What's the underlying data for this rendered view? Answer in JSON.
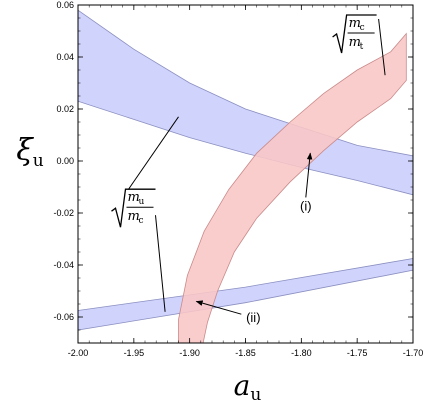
{
  "chart_data": {
    "type": "area",
    "xlabel_main": "a",
    "xlabel_sub": "u",
    "ylabel_main": "ξ",
    "ylabel_sub": "u",
    "xlim": [
      -2.0,
      -1.7
    ],
    "ylim": [
      -0.07,
      0.06
    ],
    "grid": false,
    "x_ticks": [
      "-2.00",
      "-1.95",
      "-1.90",
      "-1.85",
      "-1.80",
      "-1.75",
      "-1.70"
    ],
    "y_ticks": [
      "0.06",
      "0.04",
      "0.02",
      "0.00",
      "-0.02",
      "-0.04",
      "-0.06"
    ],
    "x_tick_values": [
      -2.0,
      -1.95,
      -1.9,
      -1.85,
      -1.8,
      -1.75,
      -1.7
    ],
    "y_tick_values": [
      0.06,
      0.04,
      0.02,
      0.0,
      -0.02,
      -0.04,
      -0.06
    ],
    "colors": {
      "blue_fill": "#c9cdfa",
      "blue_edge": "#8a8fc0",
      "red_fill": "#f9c6c6",
      "red_edge": "#c98a8a"
    },
    "series": [
      {
        "color": "blue",
        "polygon": [
          [
            -2.0,
            0.058
          ],
          [
            -1.95,
            0.043
          ],
          [
            -1.9,
            0.03
          ],
          [
            -1.85,
            0.02
          ],
          [
            -1.8,
            0.013
          ],
          [
            -1.75,
            0.006
          ],
          [
            -1.7,
            0.002
          ],
          [
            -1.7,
            -0.013
          ],
          [
            -1.75,
            -0.0075
          ],
          [
            -1.8,
            -0.0025
          ],
          [
            -1.85,
            0.003
          ],
          [
            -1.9,
            0.009
          ],
          [
            -1.95,
            0.016
          ],
          [
            -2.0,
            0.023
          ]
        ]
      },
      {
        "color": "blue",
        "polygon": [
          [
            -2.0,
            -0.0575
          ],
          [
            -1.85,
            -0.0485
          ],
          [
            -1.7,
            -0.0375
          ],
          [
            -1.7,
            -0.042
          ],
          [
            -1.85,
            -0.0545
          ],
          [
            -2.0,
            -0.065
          ]
        ]
      },
      {
        "color": "red",
        "polygon": [
          [
            -1.91,
            -0.07
          ],
          [
            -1.91,
            -0.061
          ],
          [
            -1.902,
            -0.044
          ],
          [
            -1.887,
            -0.027
          ],
          [
            -1.865,
            -0.011
          ],
          [
            -1.84,
            0.003
          ],
          [
            -1.81,
            0.015
          ],
          [
            -1.78,
            0.026
          ],
          [
            -1.75,
            0.035
          ],
          [
            -1.72,
            0.042
          ],
          [
            -1.706,
            0.049
          ],
          [
            -1.706,
            0.031
          ],
          [
            -1.72,
            0.024
          ],
          [
            -1.75,
            0.015
          ],
          [
            -1.78,
            0.004
          ],
          [
            -1.81,
            -0.008
          ],
          [
            -1.84,
            -0.022
          ],
          [
            -1.86,
            -0.035
          ],
          [
            -1.875,
            -0.05
          ],
          [
            -1.884,
            -0.062
          ],
          [
            -1.888,
            -0.07
          ]
        ]
      }
    ],
    "annotations": [
      {
        "id": "sqrt-mc-mt",
        "num": "m",
        "num_sub": "c",
        "den": "m",
        "den_sub": "t",
        "text_xy": [
          -1.772,
          0.05
        ],
        "arrow_to": [
          -1.725,
          0.033
        ]
      },
      {
        "id": "sqrt-mu-mc",
        "num": "m",
        "num_sub": "u",
        "den": "m",
        "den_sub": "c",
        "text_xy": [
          -1.97,
          -0.017
        ],
        "arrow_to": [
          -1.922,
          -0.058
        ]
      },
      {
        "id": "point-i",
        "label": "(i)",
        "text_xy": [
          -1.796,
          -0.019
        ],
        "arrow_to": [
          -1.792,
          0.003
        ]
      },
      {
        "id": "point-ii",
        "label": "(ii)",
        "text_xy": [
          -1.843,
          -0.062
        ],
        "arrow_to": [
          -1.894,
          -0.054
        ]
      }
    ],
    "pointer_lines": [
      {
        "id": "blue-upper-pointer",
        "from": [
          -1.91,
          0.017
        ],
        "to": [
          -1.955,
          -0.011
        ]
      }
    ]
  }
}
